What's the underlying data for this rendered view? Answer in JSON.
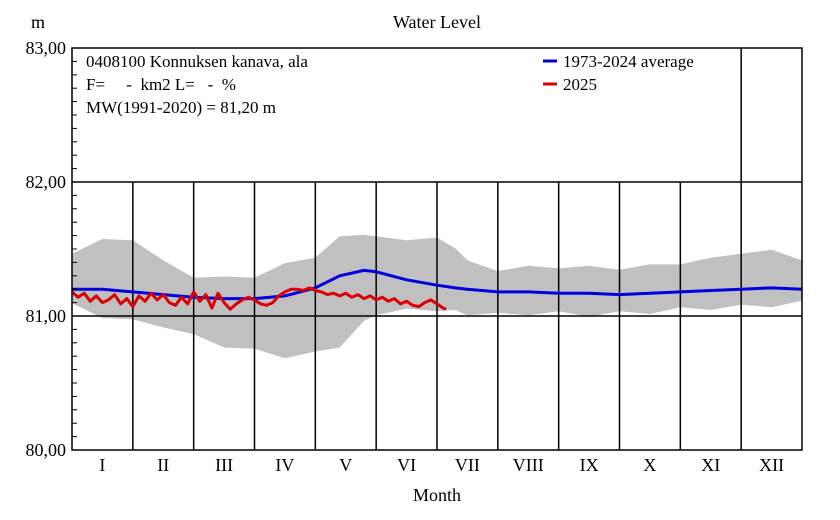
{
  "chart_data": {
    "type": "line",
    "title": "Water Level",
    "ylabel": "m",
    "xlabel": "Month",
    "ylim": [
      80.0,
      83.0
    ],
    "yticks": [
      "80,00",
      "81,00",
      "82,00",
      "83,00"
    ],
    "months": [
      "I",
      "II",
      "III",
      "IV",
      "V",
      "VI",
      "VII",
      "VIII",
      "IX",
      "X",
      "XI",
      "XII"
    ],
    "x_units": "month (0 = 1 Jan, 12 = 31 Dec)",
    "info": {
      "station": "0408100 Konnuksen kanava, ala",
      "line2": "F=     -  km2 L=   -  %",
      "mw": "MW(1991-2020) = 81,20 m"
    },
    "legend_position": "top-right",
    "grid": true,
    "band": {
      "x": [
        0.0,
        0.5,
        1.0,
        1.5,
        2.0,
        2.5,
        3.0,
        3.5,
        4.0,
        4.4,
        4.8,
        5.0,
        5.5,
        6.0,
        6.3,
        6.5,
        7.0,
        7.5,
        8.0,
        8.5,
        9.0,
        9.5,
        10.0,
        10.5,
        11.0,
        11.5,
        12.0
      ],
      "upper": [
        81.48,
        81.56,
        81.58,
        81.4,
        81.3,
        81.28,
        81.3,
        81.38,
        81.45,
        81.58,
        81.62,
        81.58,
        81.58,
        81.57,
        81.52,
        81.4,
        81.35,
        81.36,
        81.37,
        81.36,
        81.36,
        81.37,
        81.4,
        81.42,
        81.48,
        81.48,
        81.43
      ],
      "lower": [
        81.08,
        81.0,
        80.96,
        80.93,
        80.85,
        80.78,
        80.74,
        80.7,
        80.72,
        80.78,
        80.95,
        81.02,
        81.04,
        81.05,
        81.03,
        81.02,
        81.01,
        81.02,
        81.02,
        81.01,
        81.02,
        81.03,
        81.05,
        81.06,
        81.07,
        81.08,
        81.1
      ]
    },
    "series": [
      {
        "name": "1973-2024 average",
        "color": "#0000dd",
        "x": [
          0.0,
          0.5,
          1.0,
          1.5,
          2.0,
          2.5,
          3.0,
          3.5,
          4.0,
          4.4,
          4.8,
          5.0,
          5.5,
          6.0,
          6.3,
          6.5,
          7.0,
          7.5,
          8.0,
          8.5,
          9.0,
          9.5,
          10.0,
          10.5,
          11.0,
          11.5,
          12.0
        ],
        "y": [
          81.2,
          81.2,
          81.18,
          81.16,
          81.14,
          81.13,
          81.13,
          81.15,
          81.21,
          81.3,
          81.34,
          81.33,
          81.27,
          81.23,
          81.21,
          81.2,
          81.18,
          81.18,
          81.17,
          81.17,
          81.16,
          81.17,
          81.18,
          81.19,
          81.2,
          81.21,
          81.2
        ]
      },
      {
        "name": "2025",
        "color": "#dd0000",
        "x": [
          0.0,
          0.1,
          0.2,
          0.3,
          0.4,
          0.5,
          0.6,
          0.7,
          0.8,
          0.9,
          1.0,
          1.1,
          1.2,
          1.3,
          1.4,
          1.5,
          1.6,
          1.7,
          1.8,
          1.9,
          2.0,
          2.1,
          2.2,
          2.3,
          2.4,
          2.5,
          2.6,
          2.7,
          2.8,
          2.9,
          3.0,
          3.1,
          3.2,
          3.3,
          3.4,
          3.5,
          3.6,
          3.7,
          3.8,
          3.9,
          4.0,
          4.1,
          4.2,
          4.3,
          4.4,
          4.5,
          4.6,
          4.7,
          4.8,
          4.9,
          5.0,
          5.1,
          5.2,
          5.3,
          5.4,
          5.5,
          5.6,
          5.7,
          5.8,
          5.9,
          6.0,
          6.1,
          6.15
        ],
        "y": [
          81.18,
          81.14,
          81.17,
          81.11,
          81.15,
          81.1,
          81.12,
          81.16,
          81.09,
          81.13,
          81.07,
          81.15,
          81.11,
          81.17,
          81.12,
          81.16,
          81.1,
          81.08,
          81.14,
          81.09,
          81.18,
          81.11,
          81.16,
          81.06,
          81.17,
          81.1,
          81.05,
          81.09,
          81.12,
          81.14,
          81.12,
          81.09,
          81.08,
          81.1,
          81.15,
          81.18,
          81.2,
          81.2,
          81.19,
          81.21,
          81.19,
          81.18,
          81.16,
          81.17,
          81.15,
          81.17,
          81.14,
          81.16,
          81.13,
          81.15,
          81.12,
          81.14,
          81.11,
          81.13,
          81.09,
          81.11,
          81.08,
          81.07,
          81.1,
          81.12,
          81.09,
          81.06,
          81.05
        ]
      }
    ]
  }
}
